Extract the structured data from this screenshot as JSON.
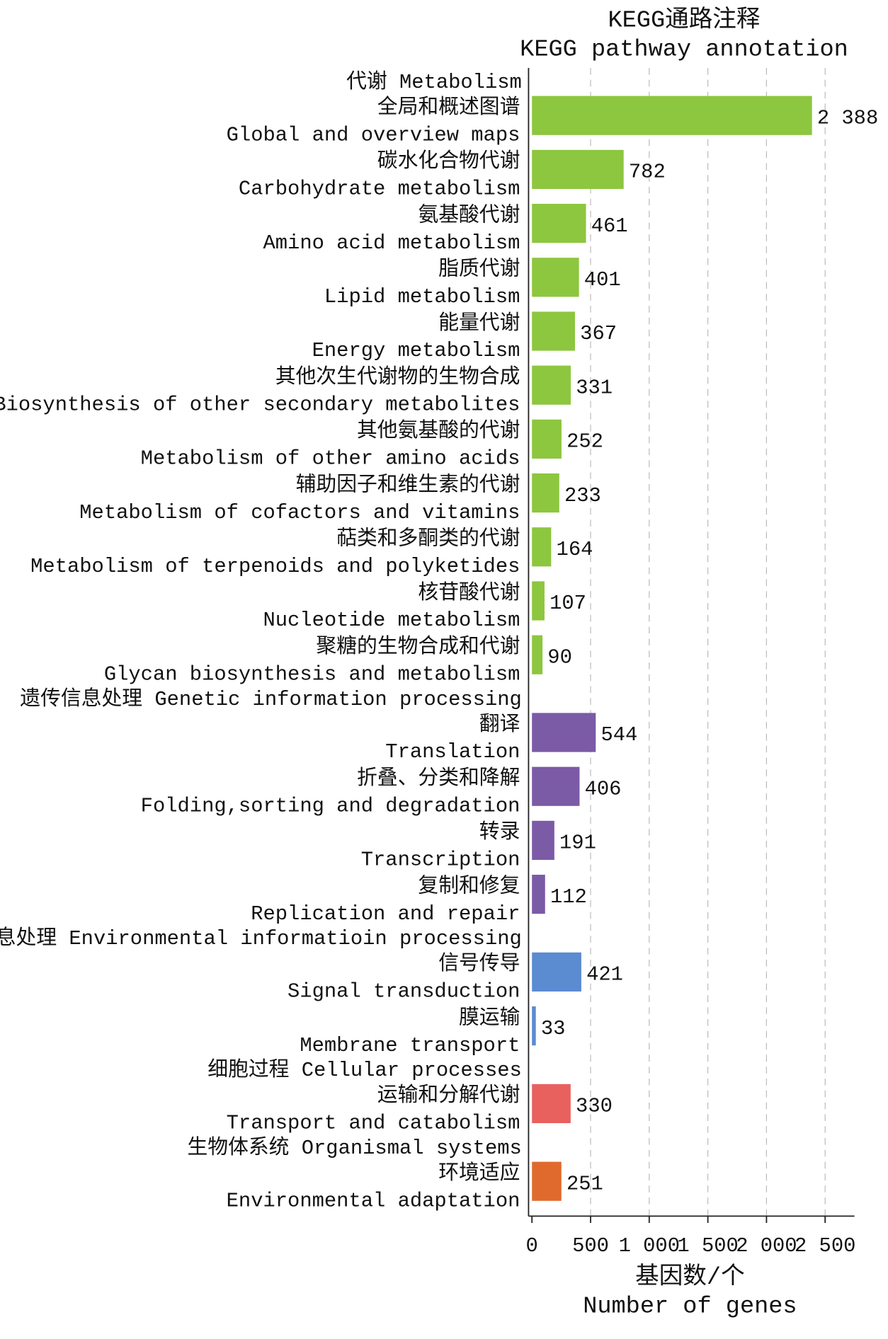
{
  "chart_data": {
    "type": "bar",
    "orientation": "horizontal",
    "title": "KEGG通路注释",
    "subtitle": "KEGG pathway annotation",
    "x_label_cn": "基因数/个",
    "x_label_en": "Number of genes",
    "xlim": [
      0,
      2750
    ],
    "xticks": [
      0,
      500,
      {
        "value": 1000,
        "label": "1 000"
      },
      {
        "value": 1500,
        "label": "1 500"
      },
      {
        "value": 2000,
        "label": "2 000"
      },
      {
        "value": 2500,
        "label": "2 500"
      }
    ],
    "grid": true,
    "groups": [
      {
        "name": "代谢 Metabolism",
        "color": "#8dc63f",
        "categories": [
          {
            "cn": "全局和概述图谱",
            "en": "Global and overview maps"
          },
          {
            "cn": "碳水化合物代谢",
            "en": "Carbohydrate metabolism"
          },
          {
            "cn": "氨基酸代谢",
            "en": "Amino acid metabolism"
          },
          {
            "cn": "脂质代谢",
            "en": "Lipid metabolism"
          },
          {
            "cn": "能量代谢",
            "en": "Energy metabolism"
          },
          {
            "cn": "其他次生代谢物的生物合成",
            "en": "Biosynthesis of other secondary metabolites"
          },
          {
            "cn": "其他氨基酸的代谢",
            "en": "Metabolism of other amino acids"
          },
          {
            "cn": "辅助因子和维生素的代谢",
            "en": "Metabolism of cofactors and vitamins"
          },
          {
            "cn": "萜类和多酮类的代谢",
            "en": "Metabolism of terpenoids and polyketides"
          },
          {
            "cn": "核苷酸代谢",
            "en": "Nucleotide metabolism"
          },
          {
            "cn": "聚糖的生物合成和代谢",
            "en": "Glycan biosynthesis and metabolism"
          }
        ],
        "values": [
          2388,
          782,
          461,
          401,
          367,
          331,
          252,
          233,
          164,
          107,
          90
        ],
        "value_labels": [
          "2 388",
          "782",
          "461",
          "401",
          "367",
          "331",
          "252",
          "233",
          "164",
          "107",
          "90"
        ]
      },
      {
        "name": "遗传信息处理 Genetic information processing",
        "color": "#7b5aa6",
        "categories": [
          {
            "cn": "翻译",
            "en": "Translation"
          },
          {
            "cn": "折叠、分类和降解",
            "en": "Folding,sorting and degradation"
          },
          {
            "cn": "转录",
            "en": "Transcription"
          },
          {
            "cn": "复制和修复",
            "en": "Replication and repair"
          }
        ],
        "values": [
          544,
          406,
          191,
          112
        ]
      },
      {
        "name": "环境信息处理 Environmental informatioin processing",
        "color": "#5b8bd0",
        "categories": [
          {
            "cn": "信号传导",
            "en": "Signal transduction"
          },
          {
            "cn": "膜运输",
            "en": "Membrane transport"
          }
        ],
        "values": [
          421,
          33
        ]
      },
      {
        "name": "细胞过程 Cellular processes",
        "color": "#e8615f",
        "categories": [
          {
            "cn": "运输和分解代谢",
            "en": "Transport and catabolism"
          }
        ],
        "values": [
          330
        ]
      },
      {
        "name": "生物体系统 Organismal systems",
        "color": "#e06a2e",
        "categories": [
          {
            "cn": "环境适应",
            "en": "Environmental adaptation"
          }
        ],
        "values": [
          251
        ]
      }
    ]
  }
}
